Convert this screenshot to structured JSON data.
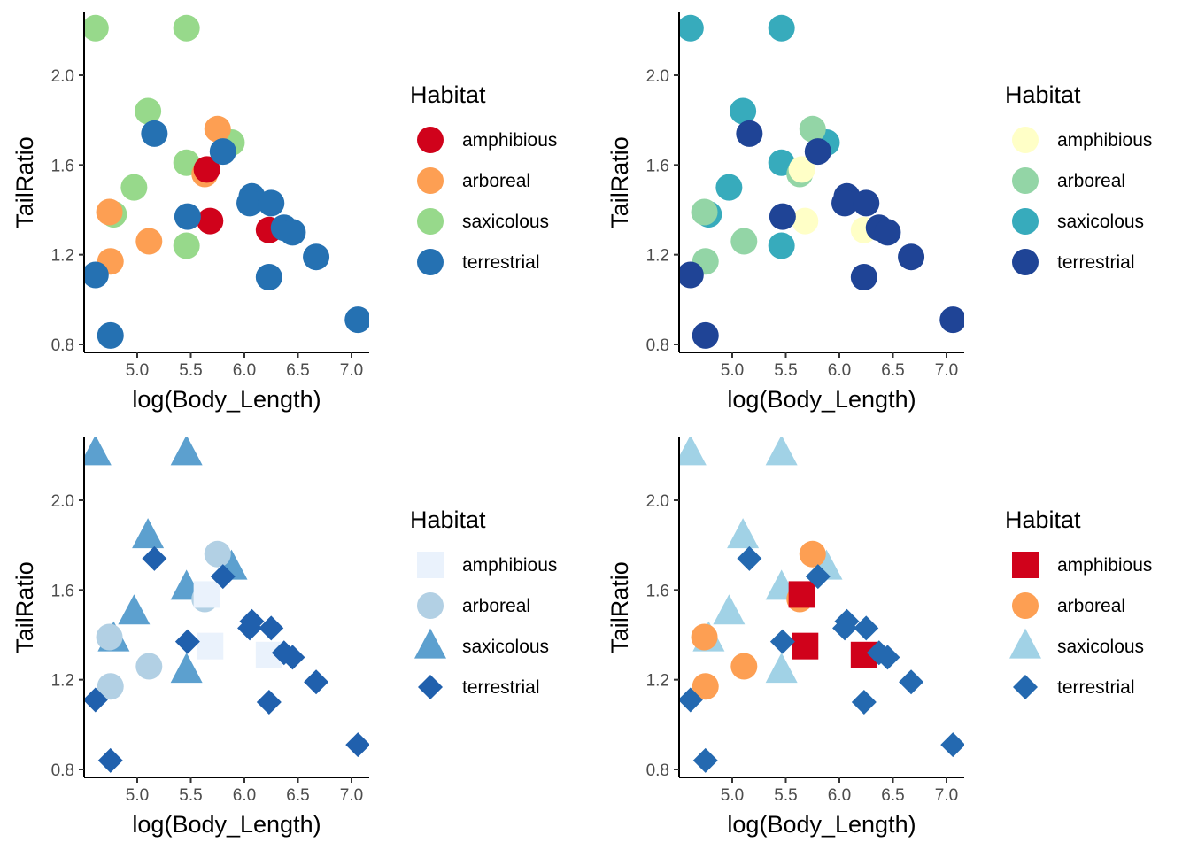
{
  "legend_title": "Habitat",
  "habitats": [
    "amphibious",
    "arboreal",
    "saxicolous",
    "terrestrial"
  ],
  "chart_data": [
    {
      "type": "scatter",
      "xlabel": "log(Body_Length)",
      "ylabel": "TailRatio",
      "xticks": [
        "5.0",
        "5.5",
        "6.0",
        "6.5",
        "7.0"
      ],
      "yticks": [
        "0.8",
        "1.2",
        "1.6",
        "2.0"
      ],
      "xlim": [
        4.58,
        7.12
      ],
      "ylim": [
        0.8,
        2.22
      ],
      "grid": false,
      "legend_position": "right",
      "legend_title": "Habitat",
      "palette": {
        "amphibious": "#d7191c",
        "arboreal": "#fdae61",
        "saxicolous": "#a6d96a",
        "terrestrial": "#1a9641"
      },
      "series_colors": {
        "amphibious": "#d0021b",
        "arboreal": "#fd9f53",
        "saxicolous": "#97d98b",
        "terrestrial": "#2571b2"
      },
      "series_shapes": {
        "amphibious": "circle",
        "arboreal": "circle",
        "saxicolous": "circle",
        "terrestrial": "circle"
      }
    },
    {
      "type": "scatter",
      "xlabel": "log(Body_Length)",
      "ylabel": "TailRatio",
      "xticks": [
        "5.0",
        "5.5",
        "6.0",
        "6.5",
        "7.0"
      ],
      "yticks": [
        "0.8",
        "1.2",
        "1.6",
        "2.0"
      ],
      "xlim": [
        4.58,
        7.12
      ],
      "ylim": [
        0.8,
        2.22
      ],
      "grid": false,
      "legend_position": "right",
      "legend_title": "Habitat",
      "series_colors": {
        "amphibious": "#ffffc7",
        "arboreal": "#93d5a6",
        "saxicolous": "#37abbc",
        "terrestrial": "#1f4496"
      },
      "series_shapes": {
        "amphibious": "circle",
        "arboreal": "circle",
        "saxicolous": "circle",
        "terrestrial": "circle"
      }
    },
    {
      "type": "scatter",
      "xlabel": "log(Body_Length)",
      "ylabel": "TailRatio",
      "xticks": [
        "5.0",
        "5.5",
        "6.0",
        "6.5",
        "7.0"
      ],
      "yticks": [
        "0.8",
        "1.2",
        "1.6",
        "2.0"
      ],
      "xlim": [
        4.58,
        7.12
      ],
      "ylim": [
        0.8,
        2.22
      ],
      "grid": false,
      "legend_position": "right",
      "legend_title": "Habitat",
      "series_colors": {
        "amphibious": "#eaf2fc",
        "arboreal": "#b2d0e4",
        "saxicolous": "#5ca0cf",
        "terrestrial": "#2060ad"
      },
      "series_shapes": {
        "amphibious": "square",
        "arboreal": "circle",
        "saxicolous": "triangle",
        "terrestrial": "diamond"
      }
    },
    {
      "type": "scatter",
      "xlabel": "log(Body_Length)",
      "ylabel": "TailRatio",
      "xticks": [
        "5.0",
        "5.5",
        "6.0",
        "6.5",
        "7.0"
      ],
      "yticks": [
        "0.8",
        "1.2",
        "1.6",
        "2.0"
      ],
      "xlim": [
        4.58,
        7.12
      ],
      "ylim": [
        0.8,
        2.22
      ],
      "grid": false,
      "legend_position": "right",
      "legend_title": "Habitat",
      "series_colors": {
        "amphibious": "#d0021b",
        "arboreal": "#fd9f53",
        "saxicolous": "#a1d2e6",
        "terrestrial": "#2469b0"
      },
      "series_shapes": {
        "amphibious": "square",
        "arboreal": "circle",
        "saxicolous": "triangle",
        "terrestrial": "diamond"
      }
    }
  ],
  "points": [
    {
      "habitat": "saxicolous",
      "x": 4.61,
      "y": 2.21
    },
    {
      "habitat": "saxicolous",
      "x": 5.46,
      "y": 2.21
    },
    {
      "habitat": "saxicolous",
      "x": 5.1,
      "y": 1.84
    },
    {
      "habitat": "saxicolous",
      "x": 5.88,
      "y": 1.7
    },
    {
      "habitat": "saxicolous",
      "x": 5.46,
      "y": 1.61
    },
    {
      "habitat": "saxicolous",
      "x": 4.97,
      "y": 1.5
    },
    {
      "habitat": "saxicolous",
      "x": 4.78,
      "y": 1.38
    },
    {
      "habitat": "saxicolous",
      "x": 5.46,
      "y": 1.24
    },
    {
      "habitat": "arboreal",
      "x": 5.75,
      "y": 1.76
    },
    {
      "habitat": "arboreal",
      "x": 5.63,
      "y": 1.56
    },
    {
      "habitat": "arboreal",
      "x": 4.74,
      "y": 1.39
    },
    {
      "habitat": "arboreal",
      "x": 5.11,
      "y": 1.26
    },
    {
      "habitat": "arboreal",
      "x": 4.75,
      "y": 1.17
    },
    {
      "habitat": "amphibious",
      "x": 5.65,
      "y": 1.58
    },
    {
      "habitat": "amphibious",
      "x": 5.68,
      "y": 1.35
    },
    {
      "habitat": "amphibious",
      "x": 6.23,
      "y": 1.31
    },
    {
      "habitat": "terrestrial",
      "x": 5.16,
      "y": 1.74
    },
    {
      "habitat": "terrestrial",
      "x": 5.8,
      "y": 1.66
    },
    {
      "habitat": "terrestrial",
      "x": 6.07,
      "y": 1.46
    },
    {
      "habitat": "terrestrial",
      "x": 6.05,
      "y": 1.43
    },
    {
      "habitat": "terrestrial",
      "x": 6.25,
      "y": 1.43
    },
    {
      "habitat": "terrestrial",
      "x": 5.47,
      "y": 1.37
    },
    {
      "habitat": "terrestrial",
      "x": 6.37,
      "y": 1.32
    },
    {
      "habitat": "terrestrial",
      "x": 6.45,
      "y": 1.3
    },
    {
      "habitat": "terrestrial",
      "x": 6.67,
      "y": 1.19
    },
    {
      "habitat": "terrestrial",
      "x": 4.61,
      "y": 1.11
    },
    {
      "habitat": "terrestrial",
      "x": 6.23,
      "y": 1.1
    },
    {
      "habitat": "terrestrial",
      "x": 7.06,
      "y": 0.91
    },
    {
      "habitat": "terrestrial",
      "x": 4.75,
      "y": 0.84
    }
  ]
}
